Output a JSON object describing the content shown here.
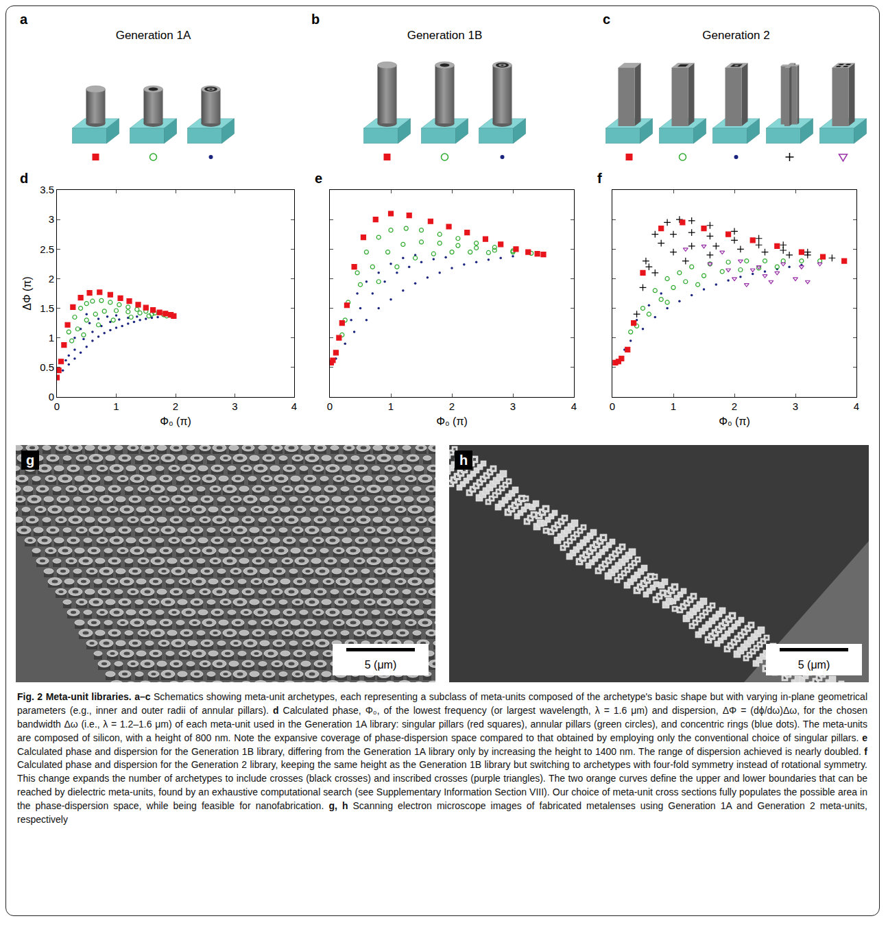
{
  "schematics": [
    {
      "panel": "a",
      "title": "Generation 1A",
      "items": [
        {
          "marker": "square",
          "color": "#e8141c"
        },
        {
          "marker": "circle-open",
          "color": "#2eaa2e"
        },
        {
          "marker": "dot",
          "color": "#1a237e"
        }
      ]
    },
    {
      "panel": "b",
      "title": "Generation 1B",
      "items": [
        {
          "marker": "square",
          "color": "#e8141c"
        },
        {
          "marker": "circle-open",
          "color": "#2eaa2e"
        },
        {
          "marker": "dot",
          "color": "#1a237e"
        }
      ]
    },
    {
      "panel": "c",
      "title": "Generation 2",
      "items": [
        {
          "marker": "square",
          "color": "#e8141c"
        },
        {
          "marker": "circle-open",
          "color": "#2eaa2e"
        },
        {
          "marker": "dot",
          "color": "#1a237e"
        },
        {
          "marker": "cross",
          "color": "#000000"
        },
        {
          "marker": "triangle-down-open",
          "color": "#9932a8"
        }
      ]
    }
  ],
  "chart_data": [
    {
      "panel": "d",
      "type": "scatter",
      "x_label": "Φ₀ (π)",
      "y_label": "ΔΦ (π)",
      "xlim": [
        0,
        4
      ],
      "ylim": [
        0,
        3.5
      ],
      "xticks": [
        0,
        1,
        2,
        3,
        4
      ],
      "yticks": [
        0,
        0.5,
        1,
        1.5,
        2,
        2.5,
        3,
        3.5
      ],
      "grid": false,
      "series": [
        {
          "color": "#1a237e",
          "marker": "dot",
          "x": [
            0.1,
            0.15,
            0.2,
            0.3,
            0.4,
            0.5,
            0.6,
            0.7,
            0.8,
            0.9,
            1.0,
            1.1,
            1.2,
            1.3,
            1.4,
            1.5,
            1.6,
            1.7,
            0.2,
            0.3,
            0.45,
            0.6,
            0.75,
            0.9,
            1.05,
            1.2,
            1.35,
            0.3,
            0.4,
            0.55,
            0.7,
            0.85,
            1.0,
            0.5
          ],
          "values": [
            0.45,
            0.62,
            0.55,
            0.65,
            0.75,
            0.85,
            0.95,
            1.02,
            1.08,
            1.13,
            1.17,
            1.2,
            1.24,
            1.27,
            1.3,
            1.32,
            1.34,
            1.35,
            0.7,
            0.8,
            0.98,
            1.1,
            1.2,
            1.27,
            1.31,
            1.34,
            1.36,
            1.0,
            1.15,
            1.25,
            1.32,
            1.36,
            1.38,
            1.4
          ]
        },
        {
          "color": "#2eaa2e",
          "marker": "circle-open",
          "x": [
            0.2,
            0.3,
            0.4,
            0.5,
            0.6,
            0.75,
            0.9,
            1.05,
            1.2,
            1.35,
            1.5,
            1.65,
            1.8,
            0.25,
            0.35,
            0.5,
            0.65,
            0.8,
            1.0,
            1.2,
            1.4,
            1.6,
            0.45,
            0.7,
            0.95,
            1.25,
            1.55,
            1.85
          ],
          "values": [
            1.1,
            1.35,
            1.5,
            1.58,
            1.62,
            1.63,
            1.6,
            1.56,
            1.52,
            1.48,
            1.45,
            1.42,
            1.39,
            0.95,
            1.15,
            1.3,
            1.4,
            1.45,
            1.46,
            1.44,
            1.42,
            1.4,
            1.05,
            1.22,
            1.3,
            1.35,
            1.37,
            1.37
          ]
        },
        {
          "color": "#e8141c",
          "marker": "square",
          "x": [
            0,
            0.03,
            0.07,
            0.12,
            0.18,
            0.27,
            0.4,
            0.55,
            0.72,
            0.9,
            1.07,
            1.22,
            1.37,
            1.5,
            1.62,
            1.73,
            1.83,
            1.92,
            1.97
          ],
          "values": [
            0.33,
            0.45,
            0.6,
            0.88,
            1.22,
            1.52,
            1.68,
            1.76,
            1.77,
            1.73,
            1.67,
            1.62,
            1.56,
            1.51,
            1.47,
            1.43,
            1.41,
            1.39,
            1.37
          ]
        }
      ]
    },
    {
      "panel": "e",
      "type": "scatter",
      "x_label": "Φ₀ (π)",
      "xlim": [
        0,
        4
      ],
      "ylim": [
        0,
        3.5
      ],
      "xticks": [
        0,
        1,
        2,
        3,
        4
      ],
      "yticks": [
        0,
        0.5,
        1,
        1.5,
        2,
        2.5,
        3,
        3.5
      ],
      "grid": false,
      "tick_labels": "x",
      "series": [
        {
          "color": "#1a237e",
          "marker": "dot",
          "x": [
            0.1,
            0.25,
            0.4,
            0.6,
            0.8,
            1.0,
            1.2,
            1.4,
            1.6,
            1.8,
            2.0,
            2.2,
            2.4,
            2.6,
            2.8,
            3.0,
            0.5,
            0.7,
            0.9,
            1.1,
            1.3,
            1.5,
            1.7,
            1.9,
            0.6,
            0.8,
            1.0,
            1.2,
            1.4,
            0.35,
            0.3,
            0.45
          ],
          "values": [
            0.65,
            0.9,
            1.1,
            1.3,
            1.5,
            1.65,
            1.8,
            1.92,
            2.02,
            2.1,
            2.18,
            2.24,
            2.28,
            2.32,
            2.35,
            2.38,
            1.5,
            1.75,
            1.95,
            2.1,
            2.2,
            2.28,
            2.33,
            2.36,
            1.95,
            2.1,
            2.25,
            2.35,
            2.4,
            1.3,
            1.55,
            1.75
          ]
        },
        {
          "color": "#2eaa2e",
          "marker": "circle-open",
          "x": [
            0.3,
            0.45,
            0.6,
            0.8,
            1.0,
            1.25,
            1.5,
            1.8,
            2.1,
            2.4,
            2.7,
            3.0,
            3.3,
            0.5,
            0.7,
            0.95,
            1.2,
            1.5,
            1.8,
            2.1,
            2.4,
            2.7,
            3.0,
            0.8,
            1.1,
            1.4,
            1.7,
            2.0,
            2.3,
            2.6,
            0.25,
            0.2
          ],
          "values": [
            1.6,
            2.1,
            2.45,
            2.7,
            2.82,
            2.85,
            2.82,
            2.75,
            2.68,
            2.6,
            2.53,
            2.47,
            2.43,
            1.9,
            2.2,
            2.45,
            2.58,
            2.62,
            2.6,
            2.56,
            2.52,
            2.48,
            2.45,
            1.95,
            2.2,
            2.35,
            2.42,
            2.45,
            2.45,
            2.44,
            1.3,
            1.05
          ]
        },
        {
          "color": "#e8141c",
          "marker": "square",
          "x": [
            0.02,
            0.05,
            0.1,
            0.15,
            0.2,
            0.28,
            0.4,
            0.55,
            0.75,
            1.0,
            1.3,
            1.65,
            1.95,
            2.25,
            2.55,
            2.8,
            3.05,
            3.25,
            3.4,
            3.5
          ],
          "values": [
            0.58,
            0.62,
            0.75,
            1.0,
            1.25,
            1.55,
            2.2,
            2.7,
            3.0,
            3.1,
            3.07,
            2.97,
            2.88,
            2.78,
            2.67,
            2.58,
            2.5,
            2.45,
            2.42,
            2.41
          ]
        }
      ]
    },
    {
      "panel": "f",
      "type": "scatter",
      "x_label": "Φ₀ (π)",
      "xlim": [
        0,
        4
      ],
      "ylim": [
        0,
        3.5
      ],
      "xticks": [
        0,
        1,
        2,
        3,
        4
      ],
      "yticks": [
        0,
        0.5,
        1,
        1.5,
        2,
        2.5,
        3,
        3.5
      ],
      "grid": false,
      "tick_labels": "x",
      "series": [
        {
          "color": "#1a237e",
          "marker": "dot",
          "x": [
            0.1,
            0.2,
            0.3,
            0.5,
            0.7,
            0.9,
            1.1,
            1.3,
            1.5,
            1.7,
            1.9,
            2.1,
            2.3,
            2.5,
            2.7,
            2.9,
            3.1,
            0.4,
            0.6,
            0.8
          ],
          "values": [
            0.6,
            0.8,
            0.95,
            1.15,
            1.35,
            1.5,
            1.62,
            1.72,
            1.82,
            1.9,
            1.97,
            2.03,
            2.08,
            2.12,
            2.16,
            2.2,
            2.23,
            1.3,
            1.55,
            1.75
          ]
        },
        {
          "color": "#2eaa2e",
          "marker": "circle-open",
          "x": [
            0.3,
            0.5,
            0.7,
            0.9,
            1.1,
            1.3,
            1.6,
            1.9,
            2.2,
            2.5,
            2.8,
            3.1,
            3.4,
            0.6,
            0.8,
            1.0,
            1.2,
            1.5,
            1.8,
            2.1,
            2.4,
            2.7,
            0.4,
            0.9,
            1.4
          ],
          "values": [
            1.1,
            1.5,
            1.8,
            2.0,
            2.1,
            2.2,
            2.25,
            2.28,
            2.3,
            2.3,
            2.3,
            2.3,
            2.3,
            1.4,
            1.65,
            1.85,
            1.95,
            2.05,
            2.12,
            2.15,
            2.18,
            2.2,
            1.2,
            1.6,
            1.9
          ]
        },
        {
          "color": "#9932a8",
          "marker": "triangle-down-open",
          "x": [
            1.2,
            1.5,
            1.8,
            2.1,
            2.4,
            2.7,
            3.0,
            3.2,
            2.2,
            2.5,
            1.6,
            1.9,
            2.8,
            3.1,
            3.4,
            2.0,
            2.3,
            2.6
          ],
          "values": [
            2.5,
            2.55,
            2.45,
            2.3,
            2.2,
            2.1,
            2.0,
            1.95,
            1.9,
            2.05,
            2.25,
            2.15,
            2.25,
            2.2,
            2.25,
            2.0,
            2.15,
            1.95
          ]
        },
        {
          "color": "#000000",
          "marker": "cross",
          "x": [
            0.4,
            0.55,
            0.7,
            0.9,
            1.1,
            1.3,
            1.6,
            2.0,
            2.4,
            2.8,
            3.2,
            3.6,
            0.6,
            0.8,
            1.0,
            1.3,
            1.6,
            2.0,
            2.4,
            2.8,
            3.2,
            0.7,
            1.0,
            1.3,
            1.7,
            2.1,
            2.5,
            2.9,
            1.2,
            1.6,
            0.5
          ],
          "values": [
            1.4,
            2.3,
            2.75,
            2.95,
            3.0,
            2.98,
            2.9,
            2.8,
            2.68,
            2.57,
            2.45,
            2.35,
            2.2,
            2.6,
            2.75,
            2.78,
            2.72,
            2.65,
            2.57,
            2.48,
            2.4,
            2.1,
            2.45,
            2.55,
            2.55,
            2.5,
            2.45,
            2.4,
            2.3,
            2.4,
            1.85
          ]
        },
        {
          "color": "#e8141c",
          "marker": "square",
          "x": [
            0.05,
            0.1,
            0.15,
            0.25,
            0.35,
            0.5,
            0.8,
            1.15,
            1.5,
            1.9,
            2.3,
            2.7,
            3.1,
            3.45,
            3.8
          ],
          "values": [
            0.58,
            0.6,
            0.65,
            0.8,
            1.25,
            2.1,
            2.85,
            2.95,
            2.85,
            2.75,
            2.65,
            2.55,
            2.45,
            2.37,
            2.3
          ]
        }
      ]
    }
  ],
  "images": [
    {
      "panel": "g",
      "scale_bar": "5 (μm)"
    },
    {
      "panel": "h",
      "scale_bar": "5 (μm)"
    }
  ],
  "caption": [
    {
      "bold": true,
      "text": "Fig. 2 Meta-unit libraries."
    },
    {
      "bold": false,
      "text": " "
    },
    {
      "bold": true,
      "text": "a–c"
    },
    {
      "bold": false,
      "text": " Schematics showing meta-unit archetypes, each representing a subclass of meta-units composed of the archetype's basic shape but with varying in-plane geometrical parameters (e.g., inner and outer radii of annular pillars). "
    },
    {
      "bold": true,
      "text": "d"
    },
    {
      "bold": false,
      "text": " Calculated phase, Φ₀, of the lowest frequency (or largest wavelength, λ = 1.6 μm) and dispersion, ΔΦ = (dϕ/dω)Δω, for the chosen bandwidth Δω (i.e., λ = 1.2–1.6 μm) of each meta-unit used in the Generation 1A library: singular pillars (red squares), annular pillars (green circles), and concentric rings (blue dots). The meta-units are composed of silicon, with a height of 800 nm. Note the expansive coverage of phase-dispersion space compared to that obtained by employing only the conventional choice of singular pillars. "
    },
    {
      "bold": true,
      "text": "e"
    },
    {
      "bold": false,
      "text": " Calculated phase and dispersion for the Generation 1B library, differing from the Generation 1A library only by increasing the height to 1400 nm. The range of dispersion achieved is nearly doubled. "
    },
    {
      "bold": true,
      "text": "f"
    },
    {
      "bold": false,
      "text": " Calculated phase and dispersion for the Generation 2 library, keeping the same height as the Generation 1B library but switching to archetypes with four-fold symmetry instead of rotational symmetry. This change expands the number of archetypes to include crosses (black crosses) and inscribed crosses (purple triangles). The two orange curves define the upper and lower boundaries that can be reached by dielectric meta-units, found by an exhaustive computational search (see Supplementary Information Section VIII). Our choice of meta-unit cross sections fully populates the possible area in the phase-dispersion space, while being feasible for nanofabrication. "
    },
    {
      "bold": true,
      "text": "g, h"
    },
    {
      "bold": false,
      "text": " Scanning electron microscope images of fabricated metalenses using Generation 1A and Generation 2 meta-units, respectively"
    }
  ]
}
